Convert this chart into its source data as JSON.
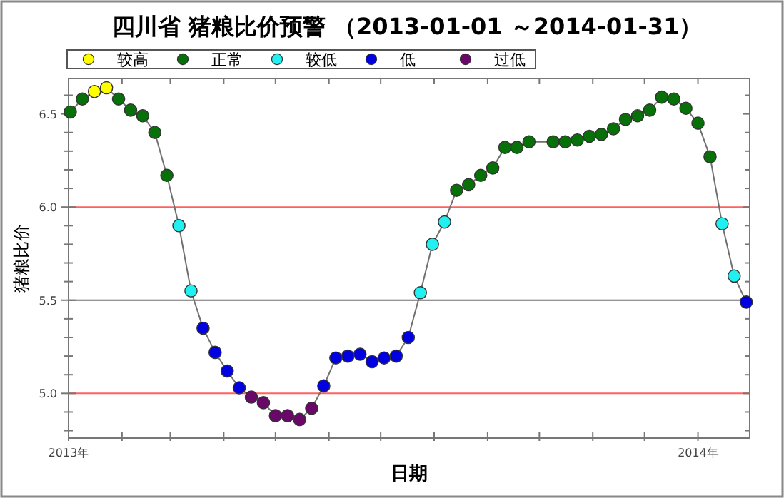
{
  "chart_data": {
    "type": "scatter",
    "title": "四川省 猪粮比价预警 （2013-01-01 ～2014-01-31）",
    "xlabel": "日期",
    "ylabel": "猪粮比价",
    "xlim": [
      "2013-01-01",
      "2014-01-31"
    ],
    "xticks": [
      {
        "value": "2013-01-01",
        "label": "2013年"
      },
      {
        "value": "2013-02-01",
        "label": null
      },
      {
        "value": "2013-03-01",
        "label": null
      },
      {
        "value": "2013-04-01",
        "label": null
      },
      {
        "value": "2013-05-01",
        "label": null
      },
      {
        "value": "2013-06-01",
        "label": null
      },
      {
        "value": "2013-07-01",
        "label": null
      },
      {
        "value": "2013-08-01",
        "label": null
      },
      {
        "value": "2013-09-01",
        "label": null
      },
      {
        "value": "2013-10-01",
        "label": null
      },
      {
        "value": "2013-11-01",
        "label": null
      },
      {
        "value": "2013-12-01",
        "label": null
      },
      {
        "value": "2014-01-01",
        "label": "2014年"
      }
    ],
    "ylim": [
      4.76,
      6.69
    ],
    "yticks": [
      {
        "value": 4.8,
        "label": null
      },
      {
        "value": 4.9,
        "label": null
      },
      {
        "value": 5.0,
        "label": "5.0"
      },
      {
        "value": 5.1,
        "label": null
      },
      {
        "value": 5.2,
        "label": null
      },
      {
        "value": 5.3,
        "label": null
      },
      {
        "value": 5.4,
        "label": null
      },
      {
        "value": 5.5,
        "label": "5.5"
      },
      {
        "value": 5.6,
        "label": null
      },
      {
        "value": 5.7,
        "label": null
      },
      {
        "value": 5.8,
        "label": null
      },
      {
        "value": 5.9,
        "label": null
      },
      {
        "value": 6.0,
        "label": "6.0"
      },
      {
        "value": 6.1,
        "label": null
      },
      {
        "value": 6.2,
        "label": null
      },
      {
        "value": 6.3,
        "label": null
      },
      {
        "value": 6.4,
        "label": null
      },
      {
        "value": 6.5,
        "label": "6.5"
      },
      {
        "value": 6.6,
        "label": null
      }
    ],
    "grid": false,
    "legend": "top",
    "ref_lines": [
      {
        "axis": "y",
        "value": 6.0,
        "color": "#ff6060"
      },
      {
        "axis": "y",
        "value": 5.5,
        "color": "#707070"
      },
      {
        "axis": "y",
        "value": 5.0,
        "color": "#ff6060"
      }
    ],
    "series": [
      {
        "type": "line",
        "color": "#707070",
        "marker": "none",
        "line_style": "solid",
        "x": [
          "2013-01-02",
          "2013-01-09",
          "2013-01-16",
          "2013-01-23",
          "2013-01-30",
          "2013-02-06",
          "2013-02-13",
          "2013-02-20",
          "2013-02-27",
          "2013-03-06",
          "2013-03-13",
          "2013-03-20",
          "2013-03-27",
          "2013-04-03",
          "2013-04-10",
          "2013-04-17",
          "2013-04-24",
          "2013-05-01",
          "2013-05-08",
          "2013-05-15",
          "2013-05-22",
          "2013-05-29",
          "2013-06-05",
          "2013-06-12",
          "2013-06-19",
          "2013-06-26",
          "2013-07-03",
          "2013-07-10",
          "2013-07-17",
          "2013-07-24",
          "2013-07-31",
          "2013-08-07",
          "2013-08-14",
          "2013-08-21",
          "2013-08-28",
          "2013-09-04",
          "2013-09-11",
          "2013-09-18",
          "2013-09-25",
          "2013-10-09",
          "2013-10-16",
          "2013-10-23",
          "2013-10-30",
          "2013-11-06",
          "2013-11-13",
          "2013-11-20",
          "2013-11-27",
          "2013-12-04",
          "2013-12-11",
          "2013-12-18",
          "2013-12-25",
          "2014-01-01",
          "2014-01-08",
          "2014-01-15",
          "2014-01-22",
          "2014-01-29"
        ],
        "values": [
          6.51,
          6.58,
          6.62,
          6.64,
          6.58,
          6.52,
          6.49,
          6.4,
          6.17,
          5.9,
          5.55,
          5.35,
          5.22,
          5.12,
          5.03,
          4.98,
          4.95,
          4.88,
          4.88,
          4.86,
          4.92,
          5.04,
          5.19,
          5.2,
          5.21,
          5.17,
          5.19,
          5.2,
          5.3,
          5.54,
          5.8,
          5.92,
          6.09,
          6.12,
          6.17,
          6.21,
          6.32,
          6.32,
          6.35,
          6.35,
          6.35,
          6.36,
          6.38,
          6.39,
          6.42,
          6.47,
          6.49,
          6.52,
          6.59,
          6.58,
          6.53,
          6.45,
          6.27,
          5.91,
          5.63,
          5.49
        ]
      },
      {
        "name": "较高",
        "color": "#ffff00",
        "marker": "circle",
        "x": [
          "2013-01-16",
          "2013-01-23"
        ],
        "values": [
          6.62,
          6.64
        ]
      },
      {
        "name": "正常",
        "color": "#087008",
        "marker": "circle",
        "x": [
          "2013-01-02",
          "2013-01-09",
          "2013-01-30",
          "2013-02-06",
          "2013-02-13",
          "2013-02-20",
          "2013-02-27",
          "2013-08-14",
          "2013-08-21",
          "2013-08-28",
          "2013-09-04",
          "2013-09-11",
          "2013-09-18",
          "2013-09-25",
          "2013-10-09",
          "2013-10-16",
          "2013-10-23",
          "2013-10-30",
          "2013-11-06",
          "2013-11-13",
          "2013-11-20",
          "2013-11-27",
          "2013-12-04",
          "2013-12-11",
          "2013-12-18",
          "2013-12-25",
          "2014-01-01",
          "2014-01-08"
        ],
        "values": [
          6.51,
          6.58,
          6.58,
          6.52,
          6.49,
          6.4,
          6.17,
          6.09,
          6.12,
          6.17,
          6.21,
          6.32,
          6.32,
          6.35,
          6.35,
          6.35,
          6.36,
          6.38,
          6.39,
          6.42,
          6.47,
          6.49,
          6.52,
          6.59,
          6.58,
          6.53,
          6.45,
          6.27
        ]
      },
      {
        "name": "较低",
        "color": "#20f0f0",
        "marker": "circle",
        "x": [
          "2013-03-06",
          "2013-03-13",
          "2013-07-24",
          "2013-07-31",
          "2013-08-07",
          "2014-01-15",
          "2014-01-22"
        ],
        "values": [
          5.9,
          5.55,
          5.54,
          5.8,
          5.92,
          5.91,
          5.63
        ]
      },
      {
        "name": "低",
        "color": "#0000e0",
        "marker": "circle",
        "x": [
          "2013-03-20",
          "2013-03-27",
          "2013-04-03",
          "2013-04-10",
          "2013-05-29",
          "2013-06-05",
          "2013-06-12",
          "2013-06-19",
          "2013-06-26",
          "2013-07-03",
          "2013-07-10",
          "2013-07-17",
          "2014-01-29"
        ],
        "values": [
          5.35,
          5.22,
          5.12,
          5.03,
          5.04,
          5.19,
          5.2,
          5.21,
          5.17,
          5.19,
          5.2,
          5.3,
          5.49
        ]
      },
      {
        "name": "过低",
        "color": "#6a086a",
        "marker": "circle",
        "x": [
          "2013-04-17",
          "2013-04-24",
          "2013-05-01",
          "2013-05-08",
          "2013-05-15",
          "2013-05-22"
        ],
        "values": [
          4.98,
          4.95,
          4.88,
          4.88,
          4.86,
          4.92
        ]
      }
    ]
  }
}
